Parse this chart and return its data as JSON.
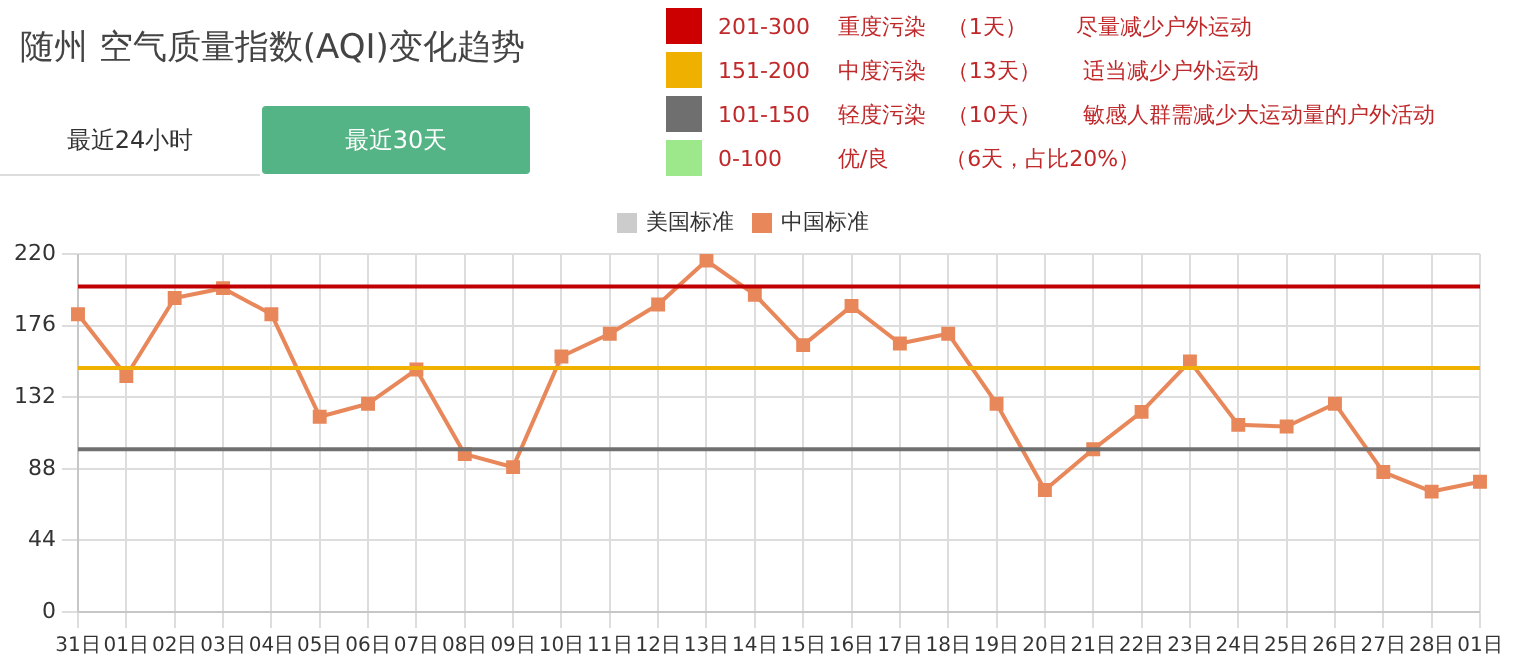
{
  "chart_data": {
    "type": "line",
    "title": "随州 空气质量指数(AQI)变化趋势",
    "categories": [
      "31日",
      "01日",
      "02日",
      "03日",
      "04日",
      "05日",
      "06日",
      "07日",
      "08日",
      "09日",
      "10日",
      "11日",
      "12日",
      "13日",
      "14日",
      "15日",
      "16日",
      "17日",
      "18日",
      "19日",
      "20日",
      "21日",
      "22日",
      "23日",
      "24日",
      "25日",
      "26日",
      "27日",
      "28日",
      "01日"
    ],
    "series": [
      {
        "name": "美国标准",
        "color": "#cccccc",
        "values": [
          null,
          null,
          null,
          null,
          null,
          null,
          null,
          null,
          null,
          null,
          null,
          null,
          null,
          null,
          null,
          null,
          null,
          null,
          null,
          null,
          null,
          null,
          null,
          null,
          null,
          null,
          null,
          null,
          null,
          null
        ]
      },
      {
        "name": "中国标准",
        "color": "#e8875a",
        "values": [
          183,
          145,
          193,
          199,
          183,
          120,
          128,
          149,
          97,
          89,
          157,
          171,
          189,
          216,
          195,
          164,
          188,
          165,
          171,
          128,
          75,
          100,
          123,
          154,
          115,
          114,
          128,
          86,
          74,
          80
        ]
      }
    ],
    "ylim": [
      0,
      220
    ],
    "yticks": [
      0,
      44,
      88,
      132,
      176,
      220
    ],
    "grid": true,
    "legend": "top",
    "marker": "square",
    "line_style": "solid",
    "ref_lines": [
      {
        "axis": "y",
        "value": 200,
        "color": "#c00000"
      },
      {
        "axis": "y",
        "value": 150,
        "color": "#f0b000"
      },
      {
        "axis": "y",
        "value": 100,
        "color": "#707070"
      }
    ],
    "annotations": [
      "最近24小时",
      "最近30天",
      "201-300    重度污染   （1天）       尽量减少户外运动",
      "151-200    中度污染   （13天）      适当减少户外运动",
      "101-150    轻度污染   （10天）      敏感人群需减少大运动量的户外活动",
      "0-100        优/良        （6天，占比20%）"
    ]
  }
}
